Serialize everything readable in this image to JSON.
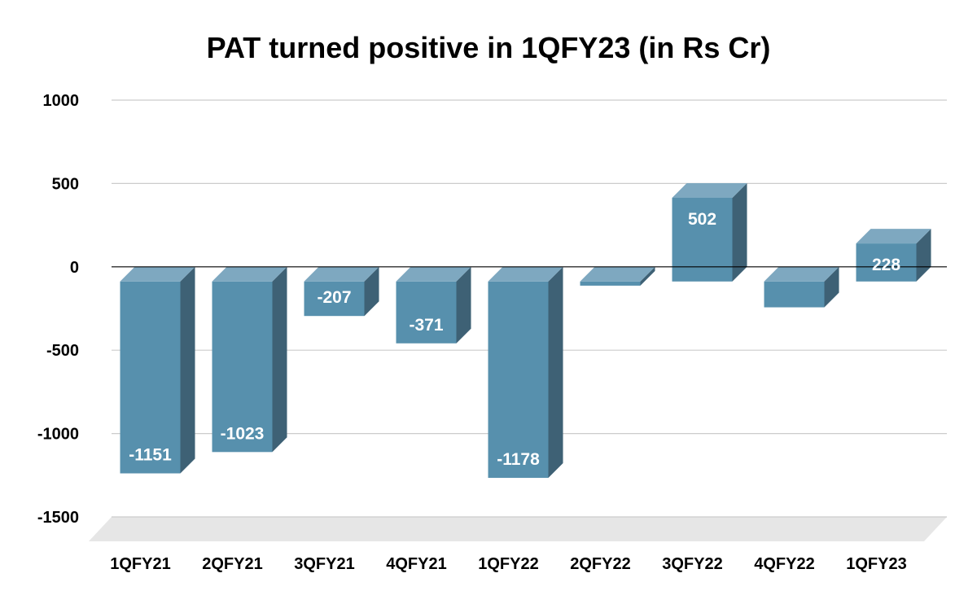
{
  "chart_data": {
    "type": "bar",
    "title": "PAT turned positive in 1QFY23 (in Rs Cr)",
    "categories": [
      "1QFY21",
      "2QFY21",
      "3QFY21",
      "4QFY21",
      "1QFY22",
      "2QFY22",
      "3QFY22",
      "4QFY22",
      "1QFY23"
    ],
    "series": [
      {
        "name": "PAT",
        "values": [
          -1151,
          -1023,
          -207,
          -371,
          -1178,
          -25,
          502,
          -155,
          228
        ],
        "labels": [
          "-1151",
          "-1023",
          "-207",
          "-371",
          "-1178",
          "",
          "502",
          "",
          "228"
        ]
      }
    ],
    "xlabel": "",
    "ylabel": "",
    "ylim": [
      -1500,
      1000
    ],
    "yticks": [
      1000,
      500,
      0,
      -500,
      -1000,
      -1500
    ],
    "grid": true,
    "legend": "none",
    "colors": {
      "bar_front": "#5790ad",
      "bar_top": "#7ea8c0",
      "bar_side": "#3e6175",
      "gridline": "#cccccc",
      "zero_line": "#000000",
      "floor": "#e6e6e6"
    }
  }
}
